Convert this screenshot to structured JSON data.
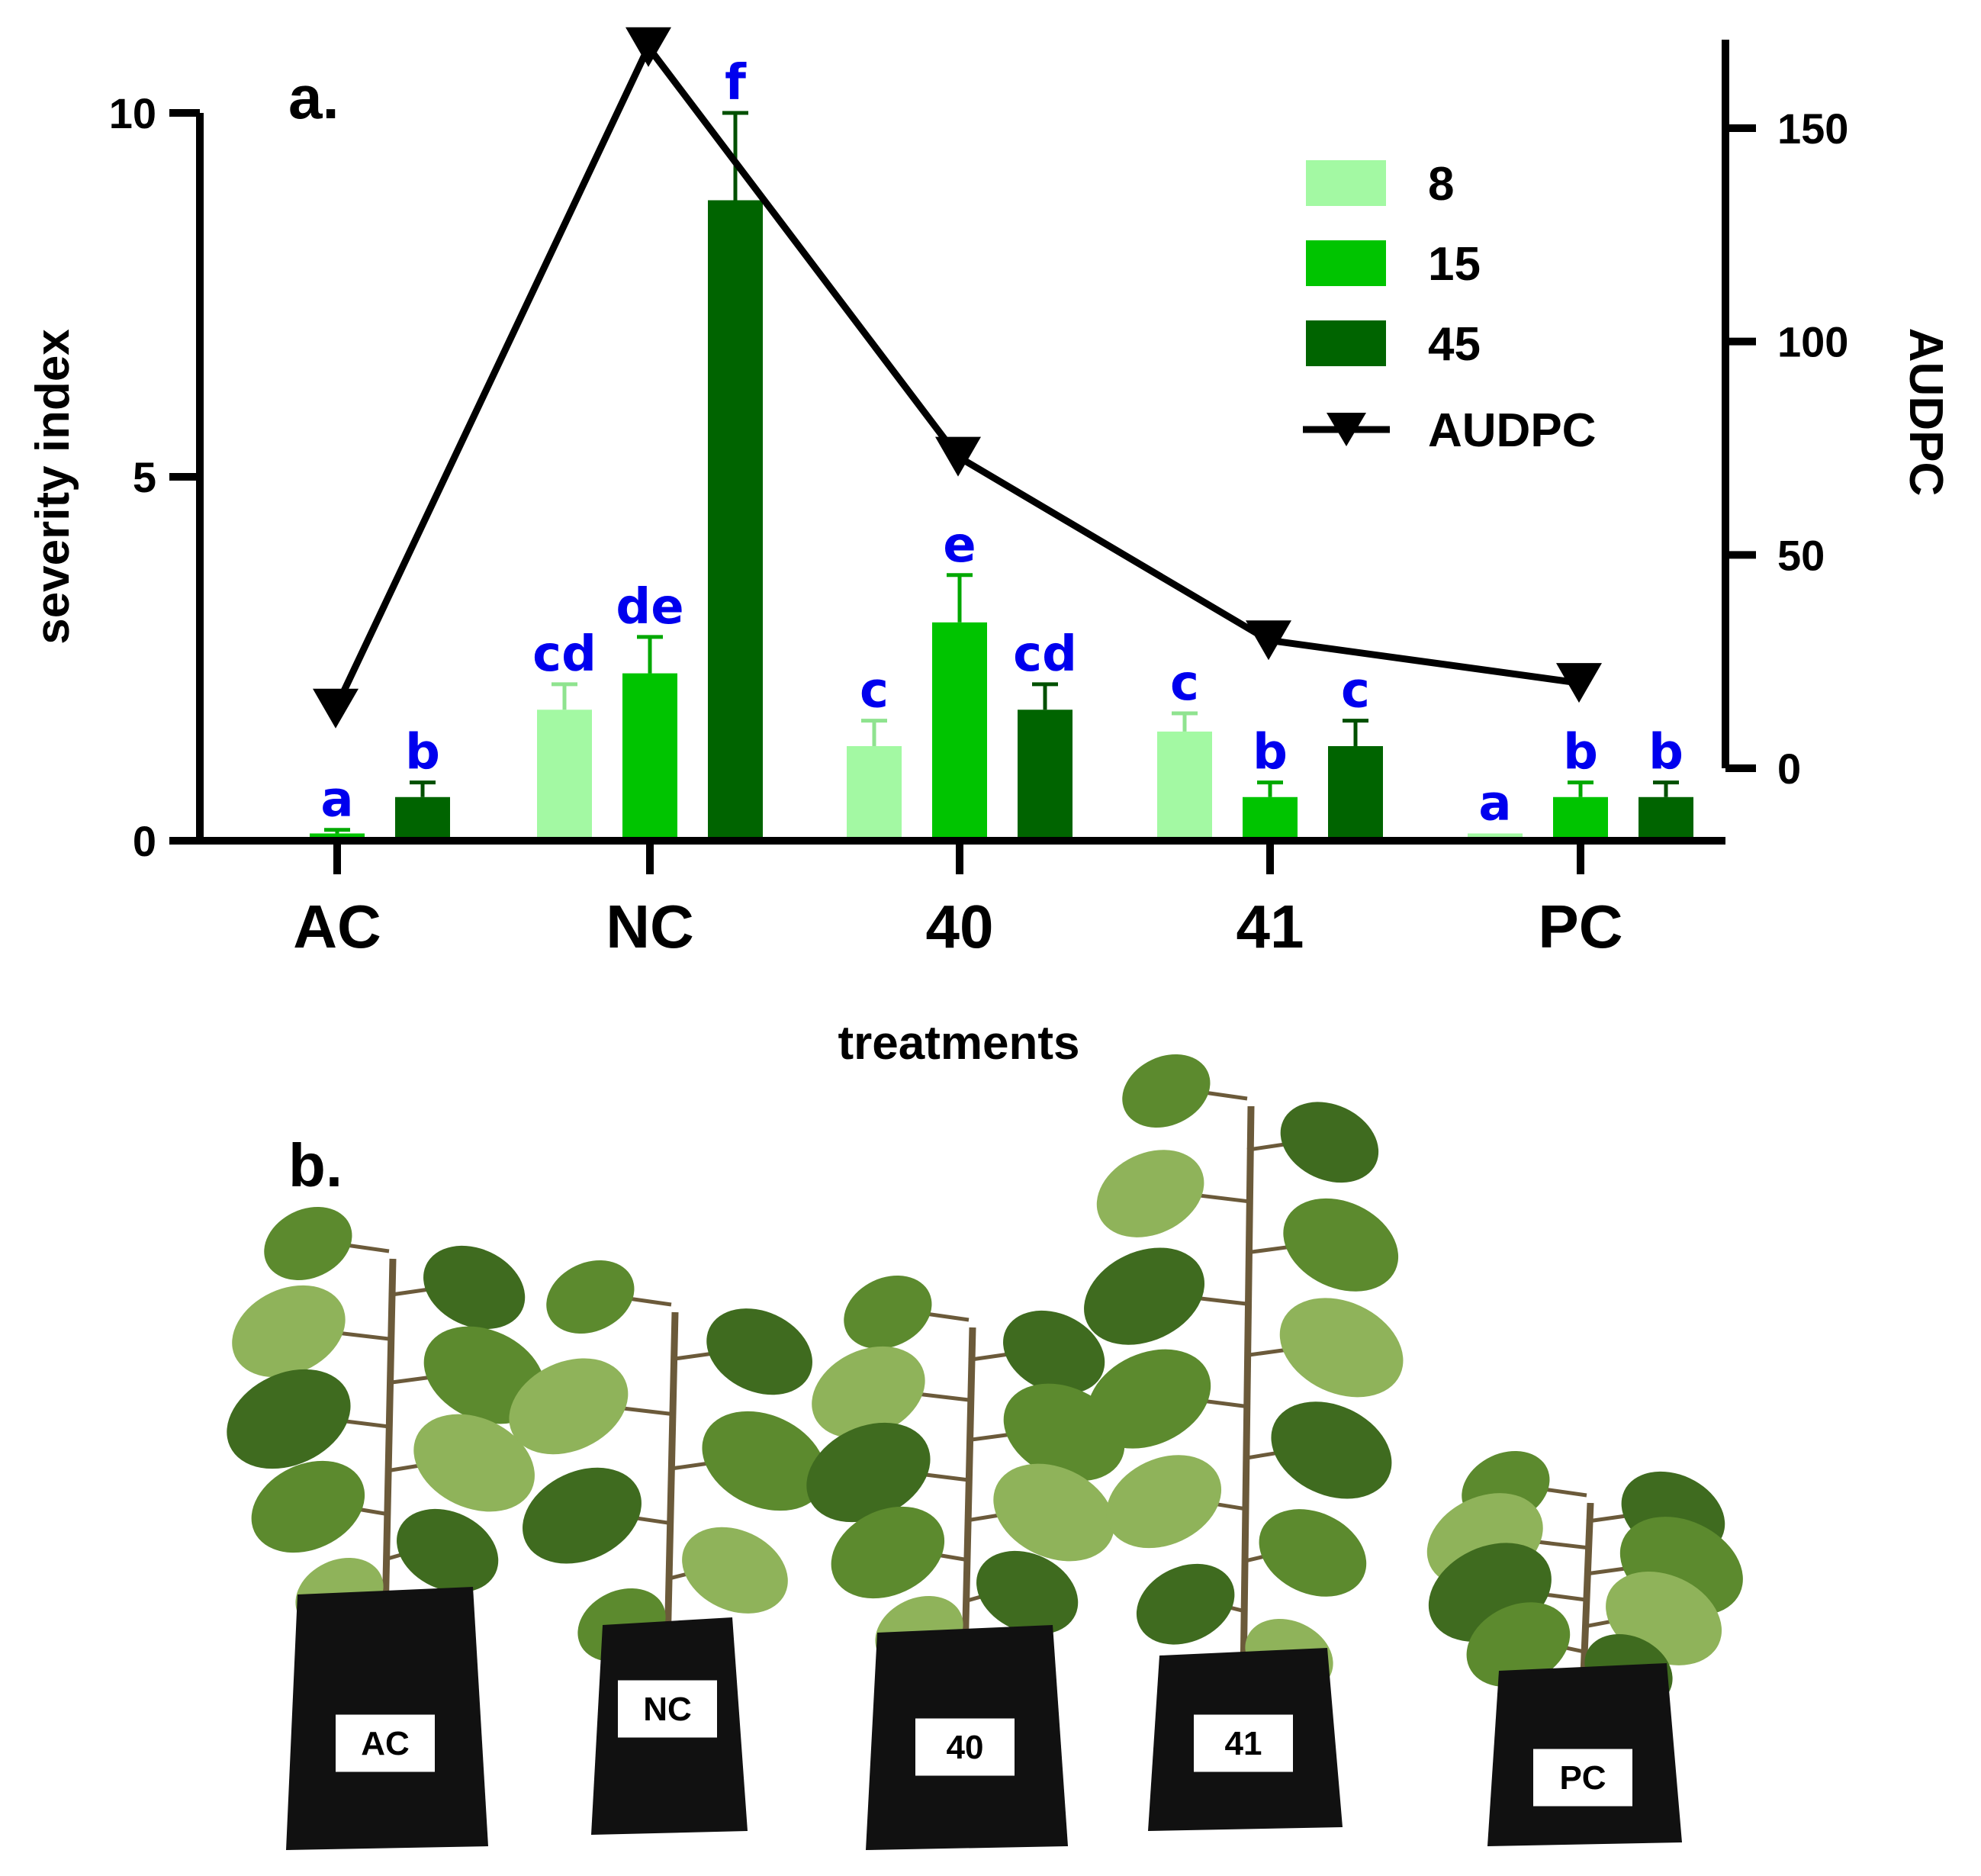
{
  "panel_a_label": "a.",
  "panel_b_label": "b.",
  "chart_data": {
    "type": "bar",
    "xlabel": "treatments",
    "ylabel": "severity index",
    "y2label": "AUDPC",
    "categories": [
      "AC",
      "NC",
      "40",
      "41",
      "PC"
    ],
    "ylim": [
      0,
      10
    ],
    "yticks": [
      0,
      5,
      10
    ],
    "y2lim": [
      -2,
      170
    ],
    "y2ticks": [
      0,
      50,
      100,
      150
    ],
    "series": [
      {
        "name": "8",
        "color": "#a3f9a3",
        "values": [
          0,
          1.8,
          1.3,
          1.5,
          0.1
        ],
        "errors": [
          0,
          0.35,
          0.35,
          0.25,
          0
        ],
        "letters": [
          "",
          "cd",
          "c",
          "c",
          "a"
        ]
      },
      {
        "name": "15",
        "color": "#00c400",
        "values": [
          0.1,
          2.3,
          3.0,
          0.6,
          0.6
        ],
        "errors": [
          0.05,
          0.5,
          0.65,
          0.2,
          0.2
        ],
        "letters": [
          "a",
          "de",
          "e",
          "b",
          "b"
        ]
      },
      {
        "name": "45",
        "color": "#006400",
        "values": [
          0.6,
          8.8,
          1.8,
          1.3,
          0.6
        ],
        "errors": [
          0.2,
          1.2,
          0.35,
          0.35,
          0.2
        ],
        "letters": [
          "b",
          "f",
          "cd",
          "c",
          "b"
        ]
      }
    ],
    "line_series": {
      "name": "AUDPC",
      "axis": "right",
      "marker": "triangle-down",
      "color": "#000000",
      "values": [
        14,
        169,
        73,
        30,
        20
      ]
    },
    "legend_position": "top-right",
    "grid": false
  },
  "photo_labels": [
    "AC",
    "NC",
    "40",
    "41",
    "PC"
  ],
  "colors": {
    "leaf": "#5c8a2e",
    "leaf_dark": "#3f6b1f",
    "leaf_light": "#8fb35a",
    "pot": "#111111",
    "stem": "#6b5a3a"
  }
}
